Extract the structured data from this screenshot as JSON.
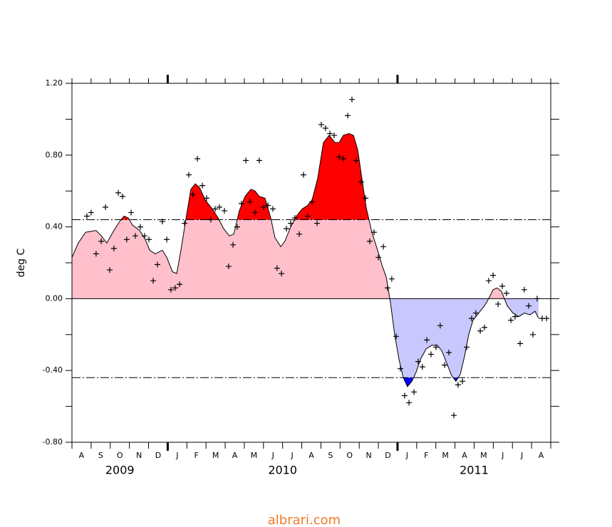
{
  "chart_data": {
    "type": "line",
    "ylabel": "deg C",
    "categories": [
      "A",
      "S",
      "O",
      "N",
      "D",
      "J",
      "F",
      "M",
      "A",
      "M",
      "J",
      "J",
      "A",
      "S",
      "O",
      "N",
      "D",
      "J",
      "F",
      "M",
      "A",
      "M",
      "J",
      "J",
      "A"
    ],
    "years": [
      "2009",
      "2010",
      "2011"
    ],
    "xlim": [
      0,
      25
    ],
    "xticks": [
      5,
      17
    ],
    "ylim": [
      -0.8,
      1.2
    ],
    "yticks": [
      {
        "value": -0.8,
        "label": "-0.80"
      },
      {
        "value": -0.4,
        "label": "-0.40"
      },
      {
        "value": 0,
        "label": "0.00"
      },
      {
        "value": 0.4,
        "label": "0.40"
      },
      {
        "value": 0.8,
        "label": "0.80"
      },
      {
        "value": 1.2,
        "label": "1.20"
      }
    ],
    "yminor": [
      -0.6,
      -0.2,
      0.2,
      0.6,
      1.0
    ],
    "reference_lines": [
      0.44,
      -0.44
    ],
    "fill_colors": {
      "above": "#ff0000",
      "positive": "#ffc0cb",
      "negative": "#c8c8ff",
      "below": "#0000ff"
    },
    "series": [
      {
        "type": "line",
        "color": "#000000",
        "x": [
          0,
          0.33,
          0.71,
          1.26,
          1.53,
          1.82,
          2.19,
          2.49,
          2.72,
          2.94,
          3.16,
          3.53,
          3.83,
          4.06,
          4.35,
          4.72,
          4.95,
          5.25,
          5.47,
          5.69,
          5.99,
          6.21,
          6.44,
          6.66,
          6.96,
          7.33,
          7.63,
          7.92,
          8.22,
          8.45,
          8.74,
          9.04,
          9.34,
          9.56,
          9.78,
          10.08,
          10.38,
          10.6,
          10.9,
          11.12,
          11.42,
          11.72,
          12.02,
          12.31,
          12.54,
          12.83,
          13.13,
          13.43,
          13.73,
          13.95,
          14.17,
          14.47,
          14.7,
          14.92,
          15.14,
          15.36,
          15.66,
          15.96,
          16.18,
          16.41,
          16.63,
          16.85,
          17.08,
          17.3,
          17.52,
          17.75,
          17.97,
          18.19,
          18.49,
          18.79,
          19.08,
          19.31,
          19.61,
          19.83,
          20.05,
          20.28,
          20.5,
          20.72,
          20.94,
          21.24,
          21.54,
          21.76,
          21.99,
          22.21,
          22.43,
          22.73,
          23.03,
          23.33,
          23.62,
          23.92,
          24.18,
          24.37
        ],
        "values": [
          0.23,
          0.31,
          0.37,
          0.38,
          0.35,
          0.31,
          0.38,
          0.43,
          0.46,
          0.45,
          0.41,
          0.38,
          0.33,
          0.27,
          0.25,
          0.27,
          0.23,
          0.15,
          0.14,
          0.27,
          0.47,
          0.61,
          0.64,
          0.62,
          0.55,
          0.5,
          0.45,
          0.39,
          0.35,
          0.36,
          0.49,
          0.57,
          0.61,
          0.6,
          0.57,
          0.56,
          0.45,
          0.34,
          0.29,
          0.32,
          0.4,
          0.46,
          0.5,
          0.52,
          0.55,
          0.67,
          0.87,
          0.91,
          0.87,
          0.87,
          0.91,
          0.92,
          0.91,
          0.83,
          0.67,
          0.51,
          0.37,
          0.27,
          0.19,
          0.12,
          -0.02,
          -0.2,
          -0.34,
          -0.44,
          -0.49,
          -0.46,
          -0.41,
          -0.34,
          -0.28,
          -0.26,
          -0.26,
          -0.29,
          -0.37,
          -0.43,
          -0.46,
          -0.42,
          -0.32,
          -0.2,
          -0.12,
          -0.08,
          -0.04,
          0,
          0.05,
          0.06,
          0.04,
          -0.04,
          -0.08,
          -0.1,
          -0.08,
          -0.09,
          -0.07,
          -0.11
        ]
      },
      {
        "type": "scatter",
        "color": "#000000",
        "marker": "+",
        "x": [
          0.78,
          1,
          1.26,
          1.53,
          1.75,
          1.97,
          2.19,
          2.42,
          2.64,
          2.86,
          3.09,
          3.31,
          3.57,
          3.79,
          4.02,
          4.24,
          4.46,
          4.72,
          4.95,
          5.17,
          5.39,
          5.62,
          5.88,
          6.1,
          6.32,
          6.55,
          6.81,
          7.03,
          7.25,
          7.48,
          7.7,
          7.96,
          8.18,
          8.41,
          8.63,
          8.85,
          9.08,
          9.3,
          9.56,
          9.78,
          10.01,
          10.23,
          10.49,
          10.71,
          10.94,
          11.2,
          11.42,
          11.64,
          11.87,
          12.09,
          12.31,
          12.54,
          12.8,
          13.02,
          13.24,
          13.47,
          13.69,
          13.95,
          14.17,
          14.4,
          14.62,
          14.84,
          15.1,
          15.33,
          15.55,
          15.77,
          16,
          16.26,
          16.48,
          16.7,
          16.93,
          17.15,
          17.37,
          17.6,
          17.86,
          18.08,
          18.3,
          18.53,
          18.75,
          19.01,
          19.23,
          19.46,
          19.68,
          19.94,
          20.16,
          20.39,
          20.61,
          20.87,
          21.09,
          21.32,
          21.54,
          21.76,
          21.99,
          22.25,
          22.47,
          22.69,
          22.92,
          23.14,
          23.4,
          23.62,
          23.85,
          24.07,
          24.29,
          24.55,
          24.78
        ],
        "values": [
          0.46,
          0.48,
          0.25,
          0.32,
          0.51,
          0.16,
          0.28,
          0.59,
          0.57,
          0.33,
          0.48,
          0.35,
          0.4,
          0.35,
          0.33,
          0.1,
          0.19,
          0.43,
          0.33,
          0.05,
          0.06,
          0.08,
          0.42,
          0.69,
          0.58,
          0.78,
          0.63,
          0.56,
          0.44,
          0.5,
          0.51,
          0.49,
          0.18,
          0.3,
          0.4,
          0.53,
          0.77,
          0.54,
          0.48,
          0.77,
          0.51,
          0.52,
          0.5,
          0.17,
          0.14,
          0.39,
          0.42,
          0.45,
          0.36,
          0.69,
          0.46,
          0.54,
          0.42,
          0.97,
          0.95,
          0.92,
          0.91,
          0.79,
          0.78,
          1.02,
          1.11,
          0.77,
          0.65,
          0.56,
          0.32,
          0.37,
          0.23,
          0.29,
          0.06,
          0.11,
          -0.21,
          -0.39,
          -0.54,
          -0.58,
          -0.52,
          -0.35,
          -0.38,
          -0.23,
          -0.31,
          -0.27,
          -0.15,
          -0.37,
          -0.3,
          -0.65,
          -0.48,
          -0.46,
          -0.27,
          -0.11,
          -0.08,
          -0.18,
          -0.16,
          0.1,
          0.13,
          -0.03,
          0.07,
          0.03,
          -0.12,
          -0.1,
          -0.25,
          0.05,
          -0.04,
          -0.2,
          0,
          -0.11,
          -0.11
        ]
      }
    ],
    "watermark": "albrari.com"
  }
}
